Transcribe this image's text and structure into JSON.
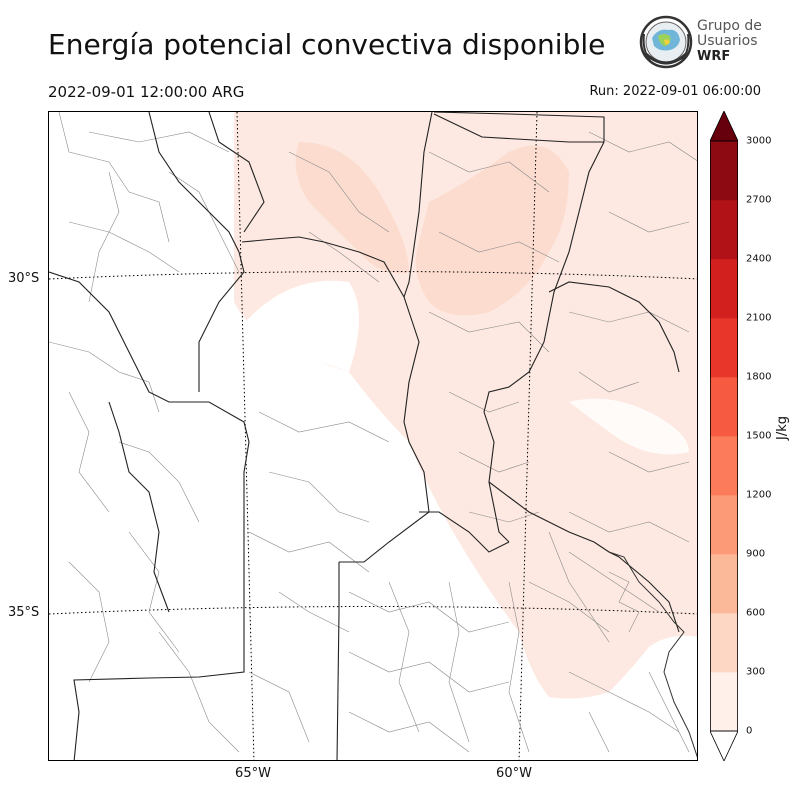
{
  "title": "Energía potencial convectiva disponible",
  "valid_time": "2022-09-01 12:00:00 ARG",
  "run_time": "Run: 2022-09-01 06:00:00",
  "logo": {
    "line1": "Grupo de",
    "line2": "Usuarios",
    "line3": "WRF",
    "icon": "globe-seal-icon"
  },
  "map": {
    "lat_labels": [
      "30°S",
      "35°S"
    ],
    "lon_labels": [
      "65°W",
      "60°W"
    ],
    "field": "CAPE",
    "shaded_level": "0-300 J/kg"
  },
  "colorbar": {
    "label": "J/kg",
    "ticks": [
      "0",
      "300",
      "600",
      "900",
      "1200",
      "1500",
      "1800",
      "2100",
      "2400",
      "2700",
      "3000"
    ],
    "colors": [
      "#fff0e9",
      "#fdd6c4",
      "#fcb99a",
      "#fc9a78",
      "#fb7b5b",
      "#f65a41",
      "#e9362b",
      "#d2201f",
      "#b11218",
      "#8e0a12"
    ],
    "over_color": "#67000d",
    "under_color": "#ffffff"
  }
}
